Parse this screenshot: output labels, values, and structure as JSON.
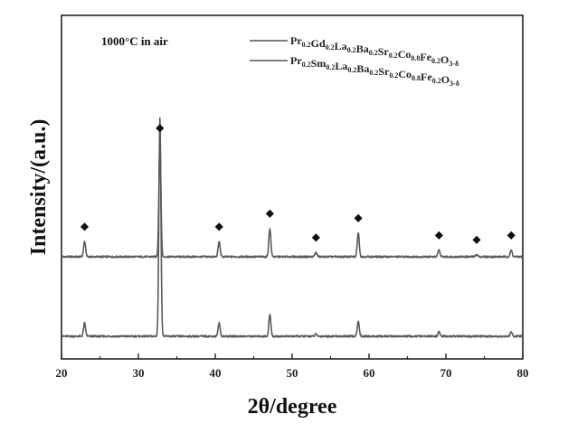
{
  "chart_data": {
    "type": "line",
    "title": "",
    "xlabel": "2θ/degree",
    "ylabel": "Intensity/(a.u.)",
    "xlim": [
      20,
      80
    ],
    "x_ticks": [
      "20",
      "30",
      "40",
      "50",
      "60",
      "70",
      "80"
    ],
    "y_ticks_shown": false,
    "grid": false,
    "legend_position": "top-right",
    "annotation": "1000°C in air",
    "peak_marker": "◆",
    "peak_markers_x": [
      23.0,
      32.8,
      40.5,
      47.1,
      53.1,
      58.6,
      69.1,
      74.0,
      78.5
    ],
    "series": [
      {
        "name": "Pr0.2Gd0.2La0.2Ba0.2Sr0.2Co0.8Fe0.2O3-δ",
        "legend": {
          "base": [
            "Pr",
            "Gd",
            "La",
            "Ba",
            "Sr",
            "Co",
            "Fe",
            "O"
          ],
          "subs": [
            "0.2",
            "0.2",
            "0.2",
            "0.2",
            "0.2",
            "0.8",
            "0.2",
            "3-δ"
          ]
        },
        "offset": 1.0,
        "peaks": [
          {
            "x": 23.0,
            "y": 0.07
          },
          {
            "x": 32.8,
            "y": 0.52
          },
          {
            "x": 40.5,
            "y": 0.07
          },
          {
            "x": 47.1,
            "y": 0.13
          },
          {
            "x": 53.1,
            "y": 0.02
          },
          {
            "x": 58.6,
            "y": 0.11
          },
          {
            "x": 69.1,
            "y": 0.03
          },
          {
            "x": 74.0,
            "y": 0.01
          },
          {
            "x": 78.5,
            "y": 0.03
          }
        ]
      },
      {
        "name": "Pr0.2Sm0.2La0.2Ba0.2Sr0.2Co0.8Fe0.2O3-δ",
        "legend": {
          "base": [
            "Pr",
            "Sm",
            "La",
            "Ba",
            "Sr",
            "Co",
            "Fe",
            "O"
          ],
          "subs": [
            "0.2",
            "0.2",
            "0.2",
            "0.2",
            "0.2",
            "0.8",
            "0.2",
            "3-δ"
          ]
        },
        "offset": 0.0,
        "peaks": [
          {
            "x": 23.0,
            "y": 0.06
          },
          {
            "x": 32.8,
            "y": 1.0
          },
          {
            "x": 40.5,
            "y": 0.06
          },
          {
            "x": 47.1,
            "y": 0.1
          },
          {
            "x": 53.1,
            "y": 0.01
          },
          {
            "x": 58.6,
            "y": 0.07
          },
          {
            "x": 69.1,
            "y": 0.02
          },
          {
            "x": 74.0,
            "y": 0.0
          },
          {
            "x": 78.5,
            "y": 0.02
          }
        ]
      }
    ]
  }
}
